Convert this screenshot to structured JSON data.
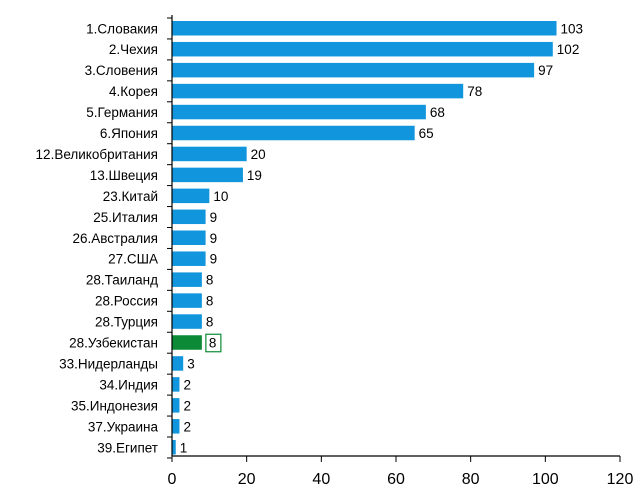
{
  "chart_data": {
    "type": "bar",
    "orientation": "horizontal",
    "categories": [
      "1.Словакия",
      "2.Чехия",
      "3.Словения",
      "4.Корея",
      "5.Германия",
      "6.Япония",
      "12.Великобритания",
      "13.Швеция",
      "23.Китай",
      "25.Италия",
      "26.Австралия",
      "27.США",
      "28.Таиланд",
      "28.Россия",
      "28.Турция",
      "28.Узбекистан",
      "33.Нидерланды",
      "34.Индия",
      "35.Индонезия",
      "37.Украина",
      "39.Египет"
    ],
    "values": [
      103,
      102,
      97,
      78,
      68,
      65,
      20,
      19,
      10,
      9,
      9,
      9,
      8,
      8,
      8,
      8,
      3,
      2,
      2,
      2,
      1
    ],
    "highlight_index": 15,
    "xlim": [
      0,
      120
    ],
    "xticks": [
      0,
      20,
      40,
      60,
      80,
      100,
      120
    ],
    "grid": false,
    "colors": {
      "bar": "#1196dd",
      "highlight": "#0c8a36",
      "highlight_label_border": "#0c8a36"
    }
  }
}
